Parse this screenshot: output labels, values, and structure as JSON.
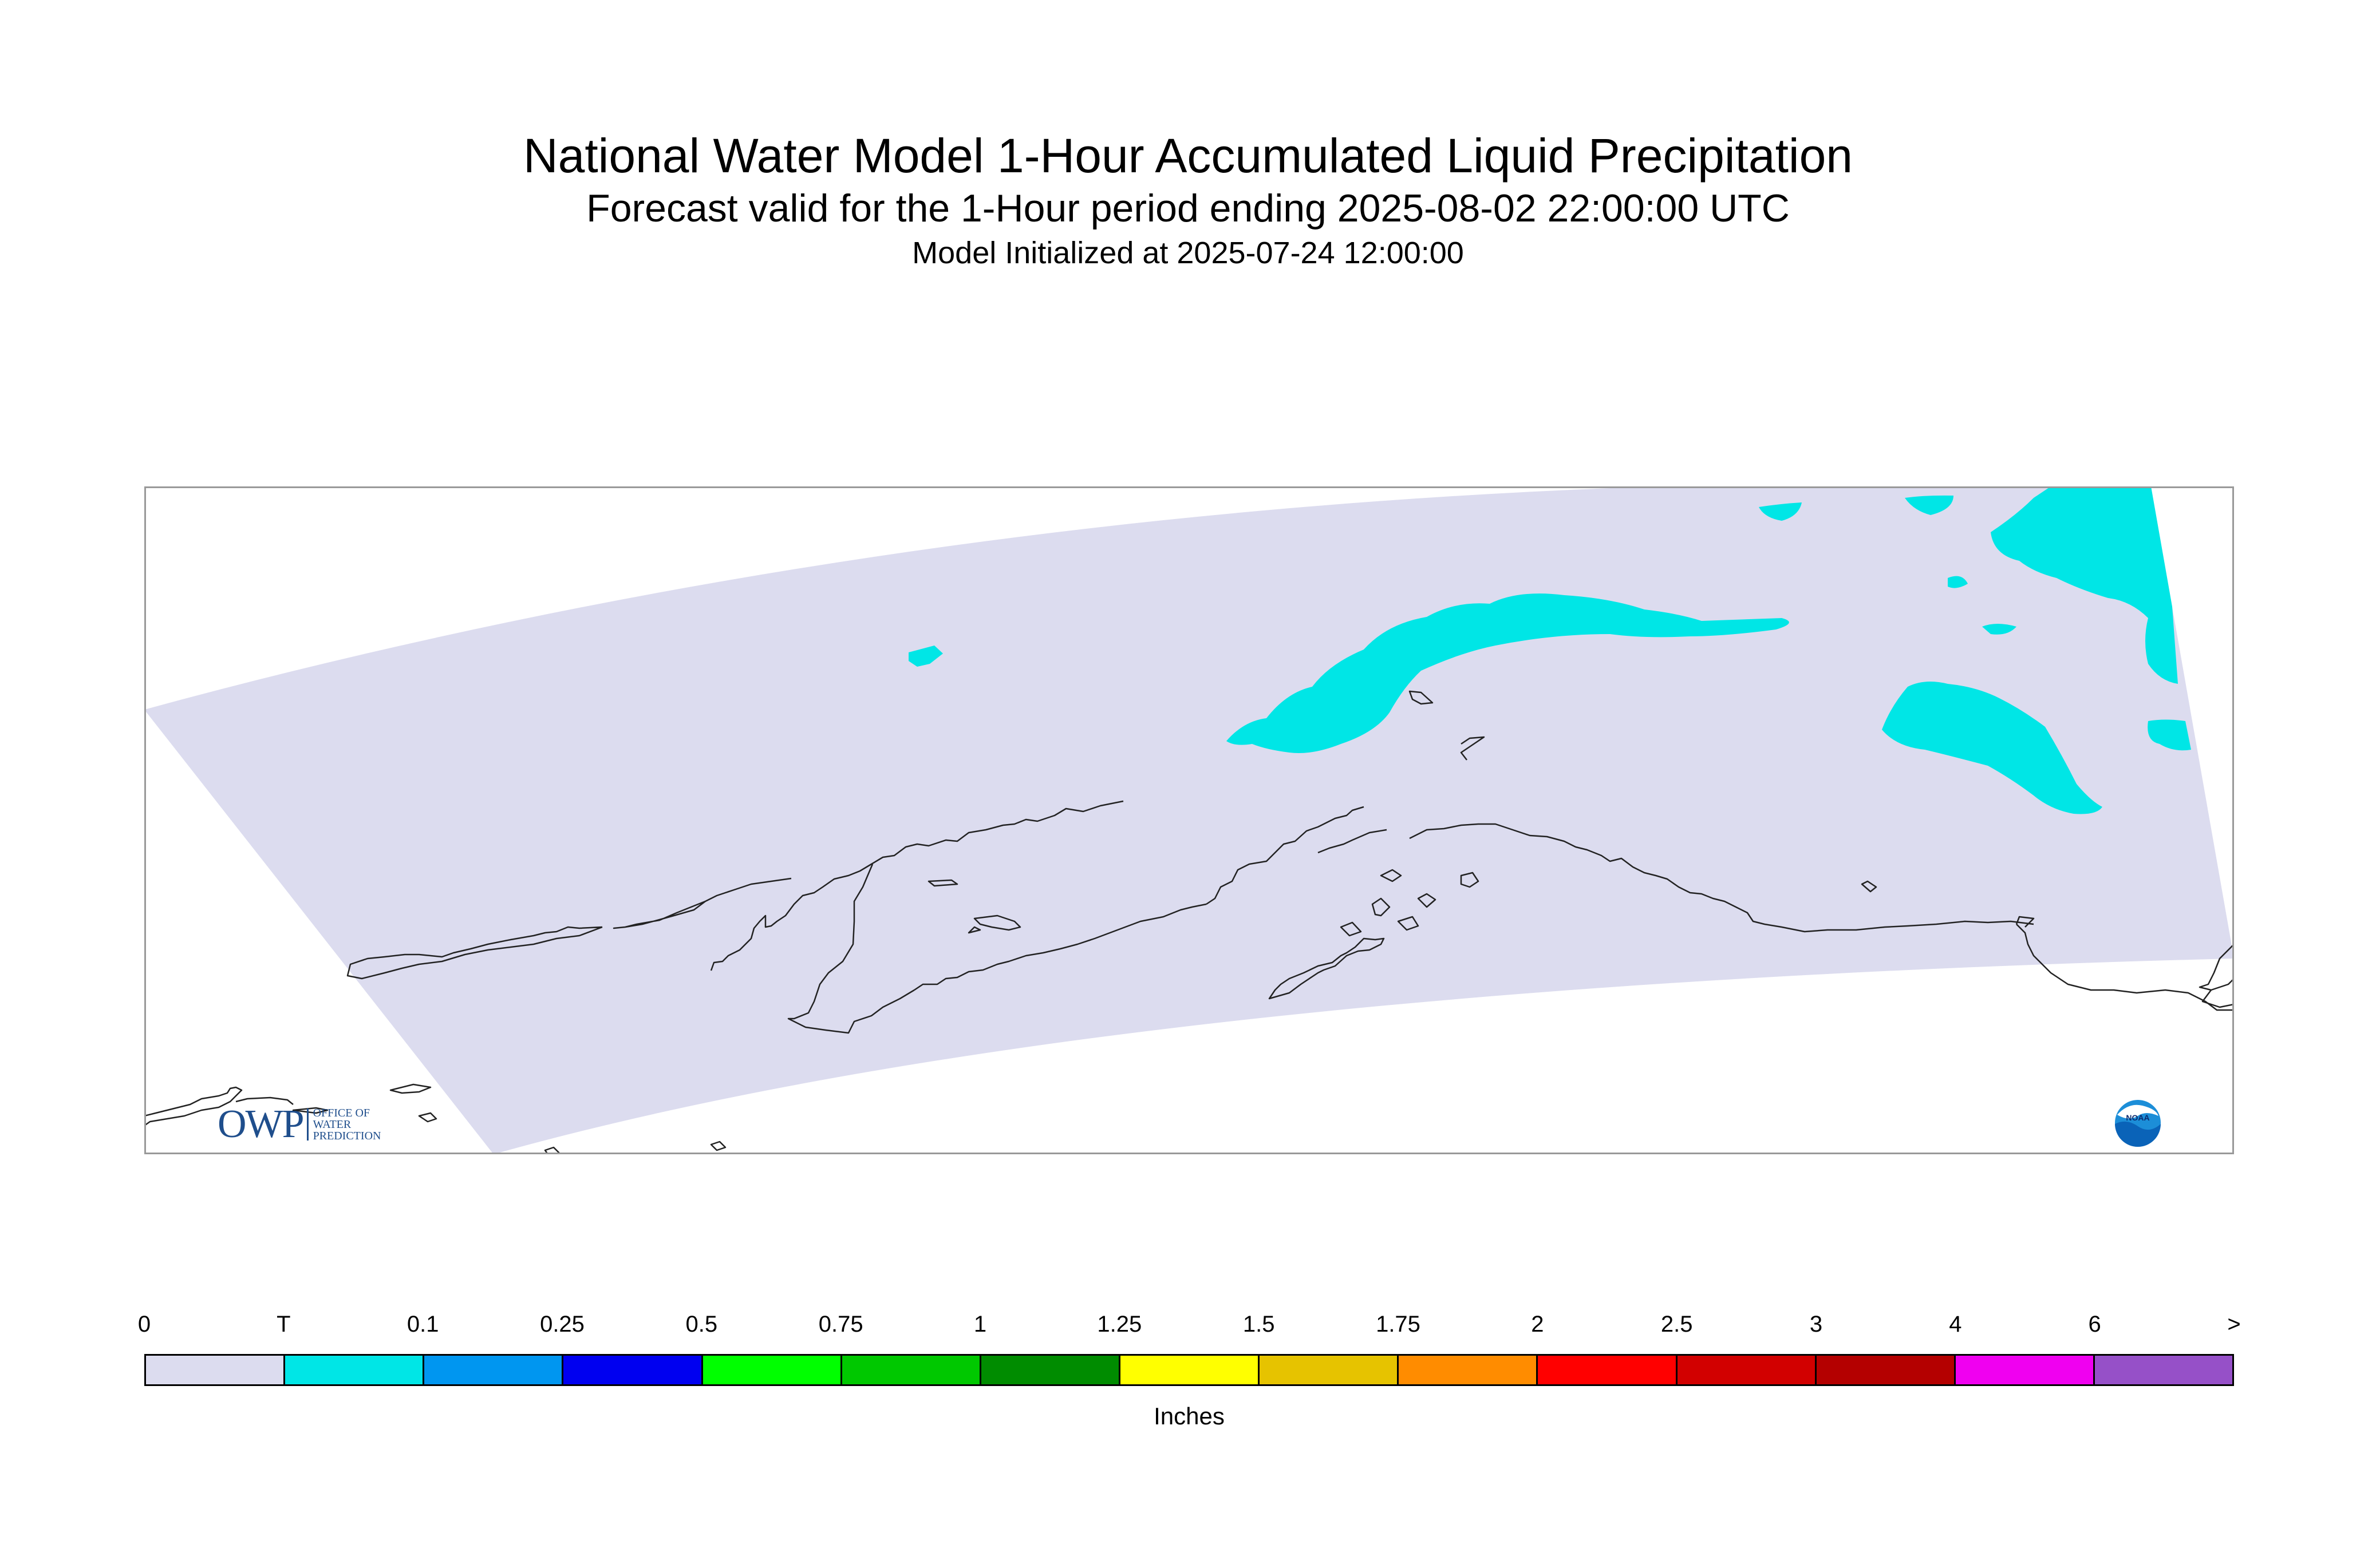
{
  "title": "National Water Model 1-Hour Accumulated Liquid Precipitation",
  "subtitle": "Forecast valid for the 1-Hour period ending 2025-08-02 22:00:00 UTC",
  "initialized": "Model Initialized at 2025-07-24 12:00:00",
  "map": {
    "domain_fill_color": "#dcdcef",
    "trace_precip_color": "#00e6e6",
    "coastline_color": "#222222",
    "frame_color": "#999999",
    "precip_category": "T"
  },
  "legend": {
    "tick_labels": [
      "0",
      "T",
      "0.1",
      "0.25",
      "0.5",
      "0.75",
      "1",
      "1.25",
      "1.5",
      "1.75",
      "2",
      "2.5",
      "3",
      "4",
      "6",
      ">"
    ],
    "colors": [
      "#dcdcef",
      "#00e6e6",
      "#0096f0",
      "#0000f0",
      "#00ff00",
      "#00c800",
      "#008c00",
      "#ffff00",
      "#e6c300",
      "#ff8c00",
      "#ff0000",
      "#d20000",
      "#b40000",
      "#f000f0",
      "#9650c8"
    ],
    "units": "Inches"
  },
  "logos": {
    "owp": {
      "letters": "OWP",
      "line1": "OFFICE OF",
      "line2": "WATER",
      "line3": "PREDICTION"
    },
    "noaa": {
      "text": "NOAA"
    }
  }
}
